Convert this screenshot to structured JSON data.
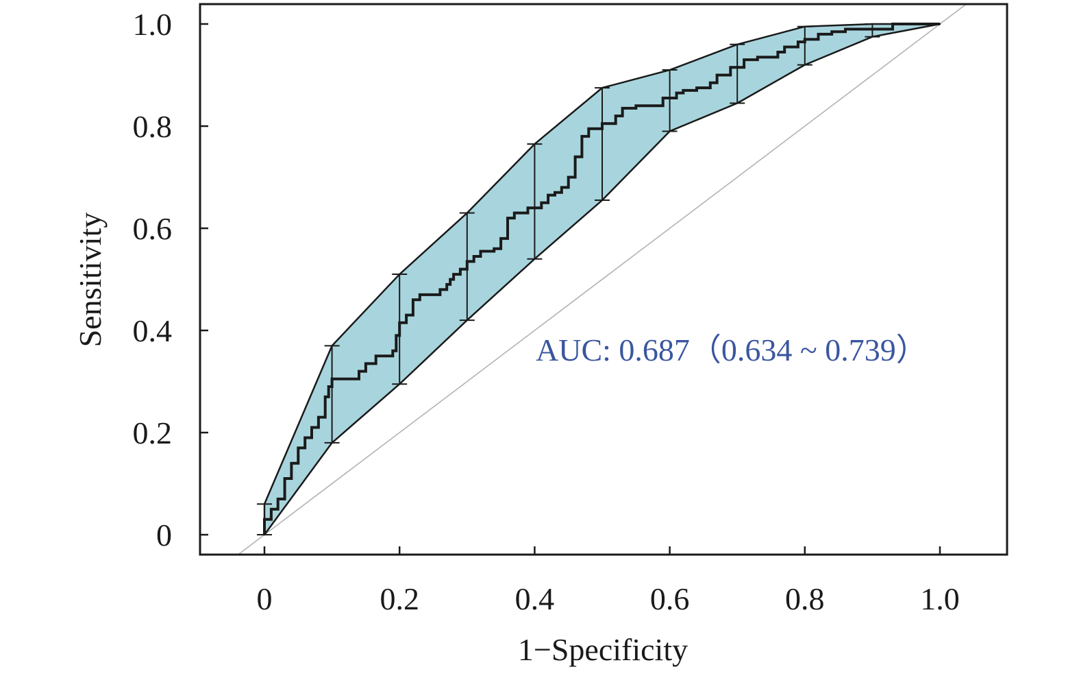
{
  "chart_data": {
    "type": "line",
    "title": "",
    "xlabel": "1−Specificity",
    "ylabel": "Sensitivity",
    "xlim": [
      -0.1,
      1.1
    ],
    "ylim": [
      -0.04,
      1.04
    ],
    "x_ticks": [
      0,
      0.2,
      0.4,
      0.6,
      0.8,
      1.0
    ],
    "x_tick_labels": [
      "0",
      "0.2",
      "0.4",
      "0.6",
      "0.8",
      "1.0"
    ],
    "y_ticks": [
      0,
      0.2,
      0.4,
      0.6,
      0.8,
      1.0
    ],
    "y_tick_labels": [
      "0",
      "0.2",
      "0.4",
      "0.6",
      "0.8",
      "1.0"
    ],
    "grid": false,
    "legend": "none",
    "annotation": "AUC: 0.687（0.634 ~ 0.739）",
    "colors": {
      "band_fill": "#a8d5dd",
      "curve": "#1a1a1a",
      "reference_line": "#b3b3b3",
      "annotation": "#3a56a0"
    },
    "roc_curve": [
      [
        0,
        0
      ],
      [
        0,
        0.03
      ],
      [
        0.01,
        0.03
      ],
      [
        0.01,
        0.05
      ],
      [
        0.02,
        0.05
      ],
      [
        0.02,
        0.07
      ],
      [
        0.03,
        0.07
      ],
      [
        0.03,
        0.11
      ],
      [
        0.04,
        0.11
      ],
      [
        0.04,
        0.14
      ],
      [
        0.05,
        0.14
      ],
      [
        0.05,
        0.17
      ],
      [
        0.06,
        0.17
      ],
      [
        0.06,
        0.19
      ],
      [
        0.07,
        0.19
      ],
      [
        0.07,
        0.21
      ],
      [
        0.08,
        0.21
      ],
      [
        0.08,
        0.23
      ],
      [
        0.09,
        0.23
      ],
      [
        0.09,
        0.27
      ],
      [
        0.095,
        0.27
      ],
      [
        0.095,
        0.29
      ],
      [
        0.1,
        0.29
      ],
      [
        0.1,
        0.305
      ],
      [
        0.14,
        0.305
      ],
      [
        0.14,
        0.32
      ],
      [
        0.15,
        0.32
      ],
      [
        0.15,
        0.335
      ],
      [
        0.165,
        0.335
      ],
      [
        0.165,
        0.35
      ],
      [
        0.19,
        0.35
      ],
      [
        0.19,
        0.36
      ],
      [
        0.195,
        0.36
      ],
      [
        0.195,
        0.39
      ],
      [
        0.2,
        0.39
      ],
      [
        0.2,
        0.415
      ],
      [
        0.21,
        0.415
      ],
      [
        0.21,
        0.43
      ],
      [
        0.22,
        0.43
      ],
      [
        0.22,
        0.46
      ],
      [
        0.23,
        0.46
      ],
      [
        0.23,
        0.47
      ],
      [
        0.26,
        0.47
      ],
      [
        0.26,
        0.48
      ],
      [
        0.27,
        0.48
      ],
      [
        0.27,
        0.49
      ],
      [
        0.275,
        0.49
      ],
      [
        0.275,
        0.5
      ],
      [
        0.28,
        0.5
      ],
      [
        0.28,
        0.51
      ],
      [
        0.29,
        0.51
      ],
      [
        0.29,
        0.52
      ],
      [
        0.3,
        0.52
      ],
      [
        0.3,
        0.535
      ],
      [
        0.31,
        0.535
      ],
      [
        0.31,
        0.545
      ],
      [
        0.32,
        0.545
      ],
      [
        0.32,
        0.555
      ],
      [
        0.34,
        0.555
      ],
      [
        0.34,
        0.56
      ],
      [
        0.35,
        0.56
      ],
      [
        0.35,
        0.58
      ],
      [
        0.36,
        0.58
      ],
      [
        0.36,
        0.62
      ],
      [
        0.37,
        0.62
      ],
      [
        0.37,
        0.63
      ],
      [
        0.39,
        0.63
      ],
      [
        0.39,
        0.64
      ],
      [
        0.41,
        0.64
      ],
      [
        0.41,
        0.65
      ],
      [
        0.42,
        0.65
      ],
      [
        0.42,
        0.665
      ],
      [
        0.43,
        0.665
      ],
      [
        0.43,
        0.67
      ],
      [
        0.44,
        0.67
      ],
      [
        0.44,
        0.68
      ],
      [
        0.45,
        0.68
      ],
      [
        0.45,
        0.7
      ],
      [
        0.46,
        0.7
      ],
      [
        0.46,
        0.74
      ],
      [
        0.47,
        0.74
      ],
      [
        0.47,
        0.78
      ],
      [
        0.48,
        0.78
      ],
      [
        0.48,
        0.795
      ],
      [
        0.5,
        0.795
      ],
      [
        0.5,
        0.805
      ],
      [
        0.52,
        0.805
      ],
      [
        0.52,
        0.82
      ],
      [
        0.53,
        0.82
      ],
      [
        0.53,
        0.835
      ],
      [
        0.55,
        0.835
      ],
      [
        0.55,
        0.84
      ],
      [
        0.59,
        0.84
      ],
      [
        0.59,
        0.855
      ],
      [
        0.61,
        0.855
      ],
      [
        0.61,
        0.865
      ],
      [
        0.62,
        0.865
      ],
      [
        0.62,
        0.87
      ],
      [
        0.64,
        0.87
      ],
      [
        0.64,
        0.875
      ],
      [
        0.66,
        0.875
      ],
      [
        0.66,
        0.885
      ],
      [
        0.67,
        0.885
      ],
      [
        0.67,
        0.9
      ],
      [
        0.69,
        0.9
      ],
      [
        0.69,
        0.915
      ],
      [
        0.71,
        0.915
      ],
      [
        0.71,
        0.93
      ],
      [
        0.73,
        0.93
      ],
      [
        0.73,
        0.935
      ],
      [
        0.76,
        0.935
      ],
      [
        0.76,
        0.945
      ],
      [
        0.77,
        0.945
      ],
      [
        0.77,
        0.955
      ],
      [
        0.79,
        0.955
      ],
      [
        0.79,
        0.965
      ],
      [
        0.8,
        0.965
      ],
      [
        0.8,
        0.97
      ],
      [
        0.82,
        0.97
      ],
      [
        0.82,
        0.98
      ],
      [
        0.84,
        0.98
      ],
      [
        0.84,
        0.985
      ],
      [
        0.86,
        0.985
      ],
      [
        0.86,
        0.99
      ],
      [
        0.93,
        0.99
      ],
      [
        0.93,
        1.0
      ],
      [
        1.0,
        1.0
      ]
    ],
    "ci_upper": [
      [
        0,
        0.06
      ],
      [
        0.1,
        0.37
      ],
      [
        0.2,
        0.51
      ],
      [
        0.3,
        0.63
      ],
      [
        0.4,
        0.765
      ],
      [
        0.5,
        0.875
      ],
      [
        0.6,
        0.91
      ],
      [
        0.7,
        0.96
      ],
      [
        0.8,
        0.995
      ],
      [
        0.9,
        1.0
      ],
      [
        1.0,
        1.0
      ]
    ],
    "ci_lower": [
      [
        0,
        0
      ],
      [
        0.1,
        0.18
      ],
      [
        0.2,
        0.295
      ],
      [
        0.3,
        0.42
      ],
      [
        0.4,
        0.54
      ],
      [
        0.5,
        0.655
      ],
      [
        0.6,
        0.79
      ],
      [
        0.7,
        0.845
      ],
      [
        0.8,
        0.92
      ],
      [
        0.9,
        0.975
      ],
      [
        1.0,
        1.0
      ]
    ],
    "reference_line": [
      [
        -0.04,
        -0.04
      ],
      [
        1.04,
        1.04
      ]
    ]
  }
}
